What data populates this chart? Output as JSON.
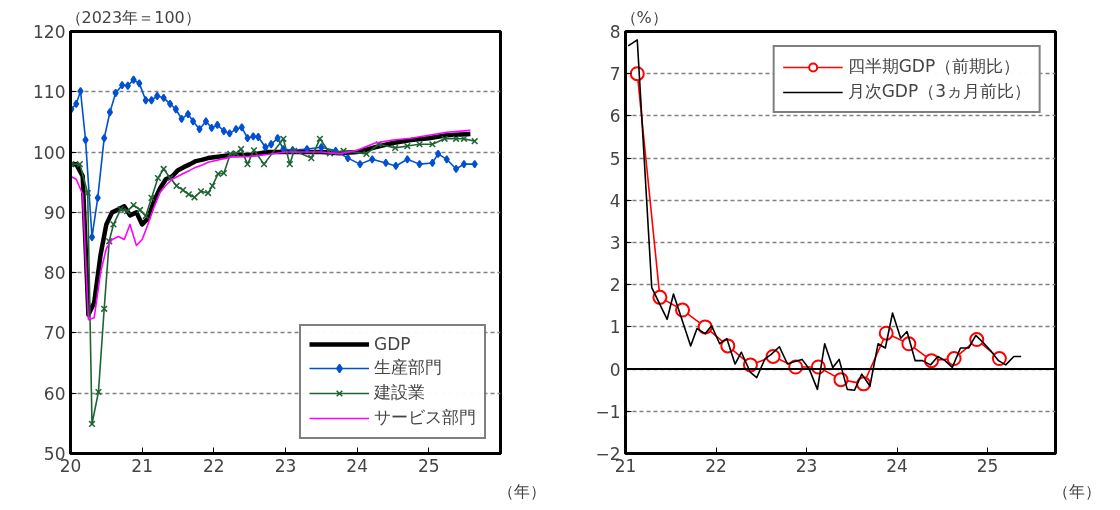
{
  "chart_data": [
    {
      "type": "line",
      "ylabel": "（2023年＝100）",
      "xlabel": "（年）",
      "xlim": [
        2020,
        2026
      ],
      "ylim": [
        50,
        120
      ],
      "xticks": [
        {
          "value": 2020,
          "label": "20"
        },
        {
          "value": 2021,
          "label": "21"
        },
        {
          "value": 2022,
          "label": "22"
        },
        {
          "value": 2023,
          "label": "23"
        },
        {
          "value": 2024,
          "label": "24"
        },
        {
          "value": 2025,
          "label": "25"
        }
      ],
      "yticks": [
        50,
        60,
        70,
        80,
        90,
        100,
        110,
        120
      ],
      "grid": "y",
      "legend": "bottom right",
      "series": [
        {
          "name": "GDP",
          "color": "#000000",
          "marker": "none",
          "x": [
            2020.0,
            2020.08,
            2020.17,
            2020.25,
            2020.33,
            2020.42,
            2020.5,
            2020.58,
            2020.67,
            2020.75,
            2020.83,
            2020.92,
            2021.0,
            2021.08,
            2021.17,
            2021.25,
            2021.33,
            2021.42,
            2021.5,
            2021.58,
            2021.67,
            2021.75,
            2021.83,
            2021.92,
            2022.25,
            2022.5,
            2022.75,
            2023.0,
            2023.25,
            2023.5,
            2023.75,
            2024.0,
            2024.25,
            2024.5,
            2024.75,
            2025.0,
            2025.25,
            2025.58
          ],
          "values": [
            98,
            98,
            96,
            73,
            75,
            83,
            88,
            90,
            90.5,
            91,
            89.5,
            90,
            88,
            89,
            92,
            94,
            95.5,
            96,
            97,
            97.5,
            98,
            98.5,
            98.7,
            99,
            99.5,
            99.5,
            100,
            100,
            100,
            100,
            99.8,
            100,
            100.8,
            101.5,
            102,
            102.3,
            102.8,
            103
          ]
        },
        {
          "name": "生産部門",
          "color": "#0050d0",
          "marker": "diamond",
          "x": [
            2020.01,
            2020.08,
            2020.14,
            2020.21,
            2020.3,
            2020.38,
            2020.47,
            2020.55,
            2020.63,
            2020.72,
            2020.8,
            2020.88,
            2020.96,
            2021.05,
            2021.13,
            2021.21,
            2021.3,
            2021.39,
            2021.47,
            2021.55,
            2021.64,
            2021.71,
            2021.8,
            2021.89,
            2021.97,
            2022.05,
            2022.14,
            2022.22,
            2022.31,
            2022.39,
            2022.47,
            2022.55,
            2022.62,
            2022.72,
            2022.8,
            2022.89,
            2022.97,
            2023.1,
            2023.3,
            2023.5,
            2023.7,
            2023.87,
            2024.04,
            2024.21,
            2024.4,
            2024.54,
            2024.7,
            2024.87,
            2025.05,
            2025.13,
            2025.25,
            2025.38,
            2025.49,
            2025.64
          ],
          "values": [
            107.1,
            108,
            110.1,
            102,
            85.9,
            92.4,
            102.3,
            106.6,
            109.8,
            111.1,
            111,
            112,
            111.4,
            108.6,
            108.6,
            109.3,
            109,
            108,
            107.1,
            105.5,
            106.3,
            105.1,
            103.8,
            105.1,
            104,
            104.5,
            103.5,
            103.1,
            103.8,
            104.1,
            102.3,
            102.6,
            102.5,
            100.8,
            101.3,
            102.3,
            100.5,
            100.3,
            100.5,
            100.8,
            100.2,
            99,
            98,
            98.8,
            98.2,
            97.7,
            98.8,
            98,
            98.2,
            99.7,
            98.8,
            97.2,
            98,
            98
          ]
        },
        {
          "name": "建設業",
          "color": "#1e6432",
          "marker": "x",
          "x": [
            2020.01,
            2020.13,
            2020.24,
            2020.3,
            2020.39,
            2020.47,
            2020.54,
            2020.6,
            2020.7,
            2020.79,
            2020.88,
            2020.97,
            2021.05,
            2021.13,
            2021.22,
            2021.3,
            2021.39,
            2021.48,
            2021.57,
            2021.65,
            2021.73,
            2021.82,
            2021.92,
            2021.98,
            2022.06,
            2022.14,
            2022.23,
            2022.31,
            2022.38,
            2022.47,
            2022.56,
            2022.7,
            2022.97,
            2023.06,
            2023.12,
            2023.36,
            2023.48,
            2023.62,
            2023.81,
            2024.13,
            2024.3,
            2024.53,
            2024.7,
            2024.87,
            2025.05,
            2025.22,
            2025.38,
            2025.49,
            2025.64
          ],
          "values": [
            98,
            98,
            93.2,
            54.9,
            60.2,
            74,
            85.2,
            88,
            90.5,
            90.2,
            91.2,
            90.4,
            89.4,
            92.4,
            95.7,
            97.2,
            95.7,
            94.4,
            93.7,
            93,
            92.5,
            93.5,
            93.2,
            94.4,
            96.4,
            96.5,
            99.7,
            99.8,
            100.5,
            98,
            100.3,
            98,
            102.2,
            98,
            100.2,
            99,
            102.2,
            99.8,
            100.2,
            99.7,
            101.3,
            100.7,
            101,
            101.3,
            101.3,
            102.2,
            102.2,
            102.2,
            101.8
          ]
        },
        {
          "name": "サービス部門",
          "color": "#ff00ff",
          "marker": "none",
          "x": [
            2020.0,
            2020.08,
            2020.17,
            2020.25,
            2020.33,
            2020.42,
            2020.5,
            2020.58,
            2020.67,
            2020.75,
            2020.83,
            2020.92,
            2021.0,
            2021.08,
            2021.17,
            2021.25,
            2021.33,
            2021.42,
            2021.5,
            2021.58,
            2021.67,
            2021.75,
            2021.83,
            2021.92,
            2022.25,
            2022.5,
            2022.75,
            2023.0,
            2023.5,
            2023.75,
            2024.0,
            2024.25,
            2024.5,
            2024.75,
            2025.0,
            2025.25,
            2025.58
          ],
          "values": [
            96,
            95.5,
            93,
            72.2,
            72.5,
            80,
            84,
            85.5,
            86,
            85.5,
            88,
            84.5,
            85.5,
            88,
            91,
            93.3,
            94.5,
            95.5,
            96,
            96.5,
            97,
            97.5,
            97.8,
            98.3,
            99.2,
            99.3,
            99.6,
            100,
            100,
            99.7,
            100.3,
            101.5,
            102,
            102.3,
            102.8,
            103.3,
            103.6
          ]
        }
      ]
    },
    {
      "type": "line",
      "ylabel": "（%）",
      "xlabel": "（年）",
      "xlim": [
        2021,
        2025.75
      ],
      "ylim": [
        -2,
        8
      ],
      "xticks": [
        {
          "value": 2021,
          "label": "21"
        },
        {
          "value": 2022,
          "label": "22"
        },
        {
          "value": 2023,
          "label": "23"
        },
        {
          "value": 2024,
          "label": "24"
        },
        {
          "value": 2025,
          "label": "25"
        }
      ],
      "yticks": [
        -2,
        -1,
        0,
        1,
        2,
        3,
        4,
        5,
        6,
        7,
        8
      ],
      "grid": "y",
      "legend": "top right",
      "ref_lines": [
        {
          "axis": "y",
          "value": 0,
          "color": "#000000",
          "line_style": "solid"
        }
      ],
      "series": [
        {
          "name": "四半期GDP（前期比）",
          "color": "#ff0000",
          "marker": "circle",
          "x": [
            2021.13,
            2021.38,
            2021.63,
            2021.88,
            2022.13,
            2022.38,
            2022.63,
            2022.88,
            2023.13,
            2023.38,
            2023.63,
            2023.88,
            2024.13,
            2024.38,
            2024.63,
            2024.88,
            2025.13
          ],
          "values": [
            7.0,
            1.7,
            1.4,
            1.0,
            0.55,
            0.1,
            0.3,
            0.05,
            0.05,
            -0.25,
            -0.35,
            0.85,
            0.6,
            0.2,
            0.25,
            0.7,
            0.25
          ]
        },
        {
          "name": "月次GDP（3ヵ月前比）",
          "color": "#000000",
          "marker": "none",
          "x": [
            2021.03,
            2021.13,
            2021.29,
            2021.46,
            2021.53,
            2021.72,
            2021.79,
            2021.88,
            2021.95,
            2022.04,
            2022.12,
            2022.21,
            2022.28,
            2022.38,
            2022.45,
            2022.54,
            2022.61,
            2022.7,
            2022.79,
            2022.87,
            2022.95,
            2023.03,
            2023.12,
            2023.2,
            2023.29,
            2023.36,
            2023.45,
            2023.53,
            2023.61,
            2023.7,
            2023.79,
            2023.87,
            2023.95,
            2024.04,
            2024.11,
            2024.2,
            2024.28,
            2024.37,
            2024.45,
            2024.53,
            2024.61,
            2024.7,
            2024.79,
            2024.87,
            2024.95,
            2025.04,
            2025.12,
            2025.2,
            2025.29,
            2025.37
          ],
          "values": [
            7.66,
            7.8,
            1.93,
            1.18,
            1.78,
            0.55,
            0.96,
            0.84,
            1.03,
            0.6,
            0.72,
            0.12,
            0.4,
            -0.08,
            -0.2,
            0.24,
            0.35,
            0.53,
            0.12,
            0.18,
            0.23,
            0,
            -0.48,
            0.6,
            0.04,
            0.23,
            -0.48,
            -0.5,
            -0.12,
            -0.4,
            0.6,
            0.5,
            1.33,
            0.73,
            0.89,
            0.2,
            0.2,
            0.1,
            0.3,
            0.2,
            0.04,
            0.5,
            0.5,
            0.8,
            0.63,
            0.42,
            0.2,
            0.1,
            0.3,
            0.3
          ]
        }
      ]
    }
  ]
}
